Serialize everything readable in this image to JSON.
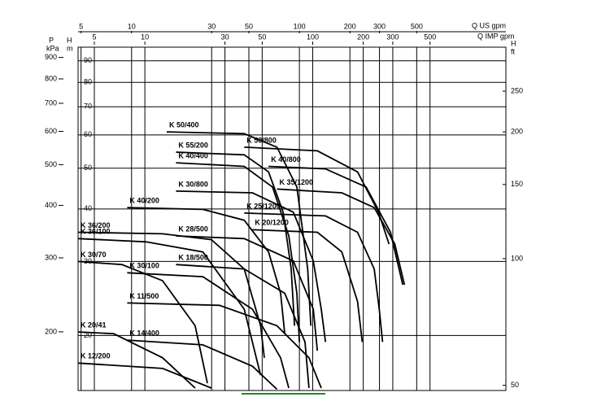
{
  "chart_data": {
    "type": "line",
    "xscale": "log",
    "yscale": "log",
    "grid": true,
    "x_label": "Q US gpm",
    "xlim": [
      4.8,
      1700
    ],
    "xticks": [
      5,
      10,
      30,
      50,
      100,
      200,
      300,
      500
    ],
    "x2_label": "Q IMP gpm",
    "x2lim": [
      4.0,
      1416
    ],
    "x2ticks": [
      5,
      10,
      30,
      50,
      100,
      200,
      300,
      500
    ],
    "y_label": "H",
    "y_unit": "m",
    "ylim": [
      14.8,
      97
    ],
    "yticks": [
      20,
      30,
      40,
      50,
      60,
      70,
      80,
      90
    ],
    "p_label": "P",
    "p_unit": "kPa",
    "plim": [
      145,
      952
    ],
    "pticks": [
      200,
      300,
      400,
      500,
      600,
      700,
      800,
      900
    ],
    "y2_label": "H",
    "y2_unit": "ft",
    "y2lim": [
      48.6,
      318
    ],
    "y2ticks": [
      50,
      100,
      150,
      200,
      250
    ],
    "series": [
      {
        "name": "K 50/400",
        "color": "#000000",
        "x": [
          16.2,
          46.9,
          73.5,
          96.6,
          112,
          117
        ],
        "values": [
          61.0,
          60.4,
          56.1,
          45.1,
          28.8,
          21.1
        ]
      },
      {
        "name": "K 50/800",
        "color": "#000000",
        "x": [
          46.9,
          128,
          222,
          296,
          342
        ],
        "values": [
          56.1,
          55.0,
          49.0,
          39.3,
          33.0
        ]
      },
      {
        "name": "K 55/200",
        "color": "#000000",
        "x": [
          18.4,
          46.9,
          65.5,
          80,
          89.3,
          93.5
        ],
        "values": [
          54.6,
          53.8,
          49.0,
          39.3,
          28.8,
          21.1
        ]
      },
      {
        "name": "K 40/400",
        "color": "#000000",
        "x": [
          18.4,
          46.9,
          69.2,
          86.5,
          96.6,
          100
        ],
        "values": [
          51.5,
          50.5,
          45.1,
          34.5,
          25.2,
          19.3
        ]
      },
      {
        "name": "K 40/800",
        "color": "#000000",
        "x": [
          65.5,
          143,
          250,
          349,
          413
        ],
        "values": [
          50.5,
          49.8,
          45.1,
          35.2,
          26.4
        ]
      },
      {
        "name": "K 30/800",
        "color": "#000000",
        "x": [
          18.4,
          52.5,
          92,
          121,
          135,
          143
        ],
        "values": [
          44.1,
          43.7,
          39.3,
          30.1,
          23.1,
          19.3
        ]
      },
      {
        "name": "K 35/1200",
        "color": "#000000",
        "x": [
          73.5,
          179,
          279,
          370,
          423
        ],
        "values": [
          44.6,
          43.7,
          40.3,
          33.0,
          26.4
        ]
      },
      {
        "name": "K 40/200",
        "color": "#000000",
        "x": [
          9.42,
          26.6,
          46.9,
          65.5,
          77.3,
          81.8
        ],
        "values": [
          40.3,
          39.9,
          37.6,
          31.6,
          25.2,
          20.2
        ]
      },
      {
        "name": "K 25/1200",
        "color": "#000000",
        "x": [
          46.9,
          143,
          222,
          279,
          299,
          313
        ],
        "values": [
          39.1,
          38.5,
          35.2,
          28.8,
          23.1,
          19.3
        ]
      },
      {
        "name": "K 20/1200",
        "color": "#000000",
        "x": [
          52.5,
          128,
          179,
          222,
          237
        ],
        "values": [
          35.7,
          35.2,
          31.6,
          24.1,
          19.3
        ]
      },
      {
        "name": "K 36/200",
        "color": "#000000",
        "x": [
          4.8,
          15.3,
          29.9,
          46.9,
          58.7,
          61.8
        ],
        "values": [
          35.2,
          34.9,
          33.8,
          28.8,
          21.1,
          17.7
        ]
      },
      {
        "name": "K 28/500",
        "color": "#000000",
        "x": [
          18.4,
          46.9,
          92,
          121,
          128
        ],
        "values": [
          34.5,
          34.0,
          30.1,
          23.1,
          18.4
        ]
      },
      {
        "name": "K 36/100",
        "color": "#000000",
        "x": [
          4.8,
          12.2,
          26.6,
          46.9,
          58.7
        ],
        "values": [
          34.0,
          33.4,
          31.6,
          23.1,
          16.1
        ]
      },
      {
        "name": "K 18/500",
        "color": "#000000",
        "x": [
          18.4,
          46.9,
          81.8,
          108,
          114
        ],
        "values": [
          29.5,
          28.8,
          25.2,
          19.3,
          15.0
        ]
      },
      {
        "name": "K 30/70",
        "color": "#000000",
        "x": [
          4.8,
          8.74,
          15.3,
          23.9,
          28.3
        ],
        "values": [
          30.0,
          29.5,
          27.0,
          21.1,
          15.4
        ]
      },
      {
        "name": "K 30/100",
        "color": "#000000",
        "x": [
          9.42,
          26.6,
          52.5,
          77.3,
          86.5
        ],
        "values": [
          28.2,
          27.6,
          23.1,
          17.7,
          15.0
        ]
      },
      {
        "name": "K 11/500",
        "color": "#000000",
        "x": [
          9.42,
          33.4,
          73.5,
          114,
          135
        ],
        "values": [
          23.9,
          23.6,
          21.1,
          17.7,
          15.0
        ]
      },
      {
        "name": "K 20/41",
        "color": "#000000",
        "x": [
          4.8,
          7.82,
          15.3,
          23.9
        ],
        "values": [
          20.4,
          20.2,
          17.7,
          15.0
        ]
      },
      {
        "name": "K 14/400",
        "color": "#000000",
        "x": [
          9.42,
          26.6,
          52.5,
          73.5
        ],
        "values": [
          19.5,
          19.0,
          16.9,
          14.9
        ]
      },
      {
        "name": "K 12/200",
        "color": "#000000",
        "x": [
          4.8,
          15.3,
          29.9
        ],
        "values": [
          17.2,
          16.7,
          15.0
        ]
      }
    ]
  }
}
